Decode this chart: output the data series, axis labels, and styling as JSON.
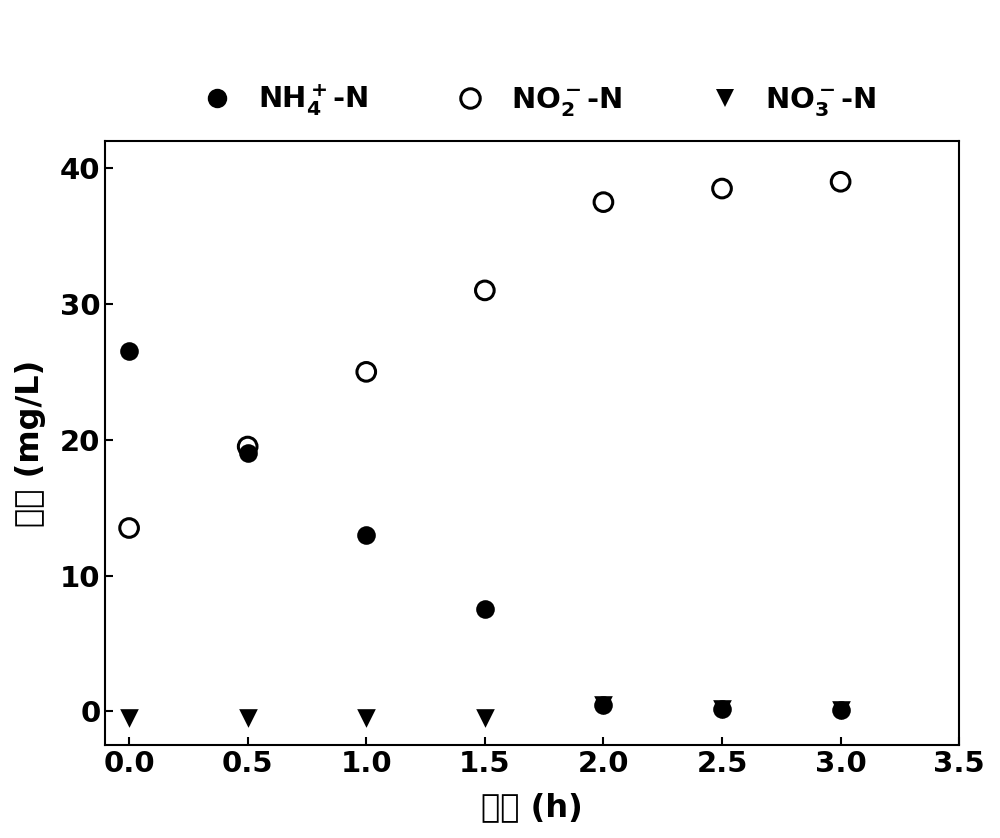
{
  "nh4_x": [
    0.0,
    0.5,
    1.0,
    1.5,
    2.0,
    2.5,
    3.0
  ],
  "nh4_y": [
    26.5,
    19.0,
    13.0,
    7.5,
    0.5,
    0.2,
    0.1
  ],
  "no2_x": [
    0.0,
    0.5,
    1.0,
    1.5,
    2.0,
    2.5,
    3.0
  ],
  "no2_y": [
    13.5,
    19.5,
    25.0,
    31.0,
    37.5,
    38.5,
    39.0
  ],
  "no3_x": [
    0.0,
    0.5,
    1.0,
    1.5,
    2.0,
    2.5,
    3.0
  ],
  "no3_y": [
    -0.5,
    -0.5,
    -0.5,
    -0.5,
    0.5,
    0.2,
    0.1
  ],
  "xlim": [
    -0.1,
    3.5
  ],
  "ylim": [
    -2.5,
    42
  ],
  "xticks": [
    0.0,
    0.5,
    1.0,
    1.5,
    2.0,
    2.5,
    3.0
  ],
  "xtick_labels": [
    "0.0",
    "0.5",
    "1.0",
    "1.5",
    "2.0",
    "2.5",
    "3.0"
  ],
  "yticks": [
    0,
    10,
    20,
    30,
    40
  ],
  "ytick_labels": [
    "0",
    "10",
    "20",
    "30",
    "40"
  ],
  "xlabel": "时间 (h)",
  "ylabel": "浓度 (mg/L)",
  "legend_nh4": "NH$_4^+$-N",
  "legend_no2": "NO$_2^-$-N",
  "legend_no3": "NO$_3^-$-N",
  "marker_size": 180,
  "color": "black",
  "background_color": "#ffffff",
  "tick_font_size": 21,
  "label_font_size": 23,
  "legend_font_size": 21,
  "figsize": [
    10.0,
    8.38
  ],
  "dpi": 100
}
